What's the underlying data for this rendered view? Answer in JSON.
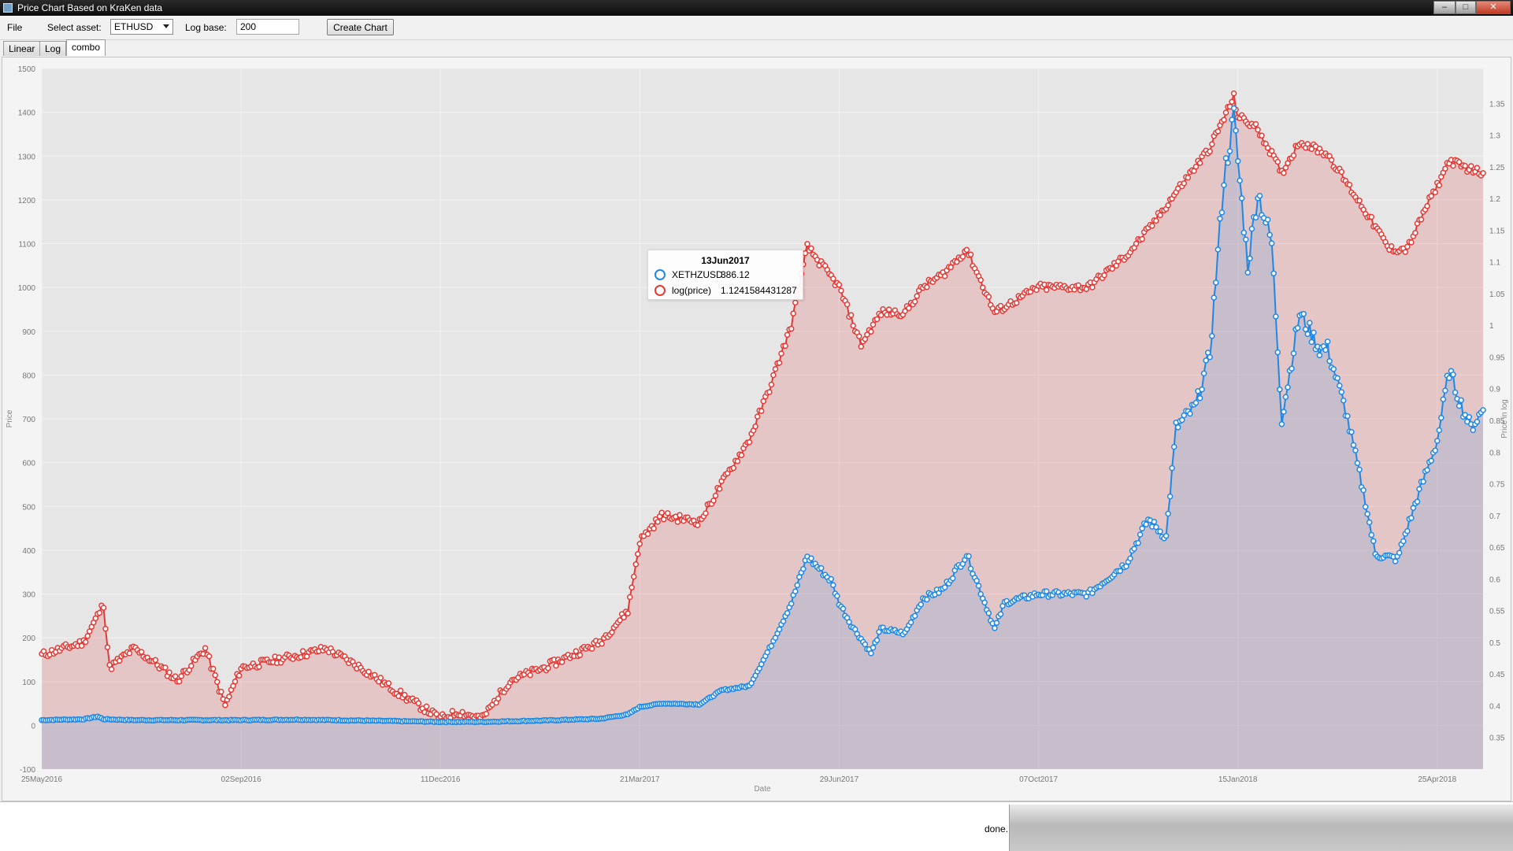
{
  "window": {
    "title": "Price Chart Based on KraKen data",
    "minimize": "–",
    "maximize": "□",
    "close": "✕"
  },
  "toolbar": {
    "file": "File",
    "select_asset_label": "Select asset:",
    "asset_value": "ETHUSD",
    "log_base_label": "Log base:",
    "log_base_value": "200",
    "create_button": "Create Chart"
  },
  "tabs": [
    {
      "label": "Linear"
    },
    {
      "label": "Log"
    },
    {
      "label": "combo",
      "active": true
    }
  ],
  "status": {
    "text": "done."
  },
  "tooltip": {
    "date": "13Jun2017",
    "rows": [
      {
        "name": "XETHZUSD",
        "value": "386.12",
        "color": "#1e88e5"
      },
      {
        "name": "log(price)",
        "value": "1.1241584431287",
        "color": "#e53935"
      }
    ]
  },
  "chart_data": {
    "type": "area",
    "xlabel": "Date",
    "ylabel": "Price",
    "y2label": "Price in log",
    "x_ticks": [
      "25May2016",
      "02Sep2016",
      "11Dec2016",
      "21Mar2017",
      "29Jun2017",
      "07Oct2017",
      "15Jan2018",
      "25Apr2018"
    ],
    "x_range": [
      "25May2016",
      "18May2018"
    ],
    "ylim": [
      -100,
      1500
    ],
    "y_ticks": [
      -100,
      0,
      100,
      200,
      300,
      400,
      500,
      600,
      700,
      800,
      900,
      1000,
      1100,
      1200,
      1300,
      1400,
      1500
    ],
    "y2lim": [
      0.3,
      1.405
    ],
    "y2_ticks": [
      0.35,
      0.4,
      0.45,
      0.5,
      0.55,
      0.6,
      0.65,
      0.7,
      0.75,
      0.8,
      0.85,
      0.9,
      0.95,
      1,
      1.05,
      1.1,
      1.15,
      1.2,
      1.25,
      1.3,
      1.35
    ],
    "grid": true,
    "colors": {
      "linear": "#1e88e5",
      "log": "#e53935",
      "plot_bg": "#e6e6e6"
    },
    "series": [
      {
        "name": "XETHZUSD",
        "axis": "left",
        "points": [
          [
            "25May2016",
            12
          ],
          [
            "15Jun2016",
            14
          ],
          [
            "22Jun2016",
            20
          ],
          [
            "25Jun2016",
            14
          ],
          [
            "10Jul2016",
            12
          ],
          [
            "24Jul2016",
            12
          ],
          [
            "02Sep2016",
            12
          ],
          [
            "01Oct2016",
            13
          ],
          [
            "01Nov2016",
            11
          ],
          [
            "11Dec2016",
            8
          ],
          [
            "20Dec2016",
            8
          ],
          [
            "01Jan2017",
            8
          ],
          [
            "01Feb2017",
            11
          ],
          [
            "01Mar2017",
            15
          ],
          [
            "15Mar2017",
            25
          ],
          [
            "21Mar2017",
            42
          ],
          [
            "01Apr2017",
            50
          ],
          [
            "20Apr2017",
            48
          ],
          [
            "01May2017",
            80
          ],
          [
            "15May2017",
            90
          ],
          [
            "25May2017",
            175
          ],
          [
            "05Jun2017",
            280
          ],
          [
            "13Jun2017",
            386
          ],
          [
            "25Jun2017",
            330
          ],
          [
            "29Jun2017",
            280
          ],
          [
            "05Jul2017",
            230
          ],
          [
            "15Jul2017",
            165
          ],
          [
            "20Jul2017",
            220
          ],
          [
            "01Aug2017",
            210
          ],
          [
            "10Aug2017",
            290
          ],
          [
            "20Aug2017",
            310
          ],
          [
            "01Sep2017",
            390
          ],
          [
            "15Sep2017",
            220
          ],
          [
            "20Sep2017",
            280
          ],
          [
            "07Oct2017",
            300
          ],
          [
            "20Oct2017",
            300
          ],
          [
            "01Nov2017",
            300
          ],
          [
            "20Nov2017",
            370
          ],
          [
            "01Dec2017",
            470
          ],
          [
            "10Dec2017",
            430
          ],
          [
            "15Dec2017",
            680
          ],
          [
            "25Dec2017",
            730
          ],
          [
            "01Jan2018",
            850
          ],
          [
            "08Jan2018",
            1250
          ],
          [
            "13Jan2018",
            1390
          ],
          [
            "15Jan2018",
            1290
          ],
          [
            "20Jan2018",
            1050
          ],
          [
            "25Jan2018",
            1220
          ],
          [
            "01Feb2018",
            1100
          ],
          [
            "06Feb2018",
            700
          ],
          [
            "15Feb2018",
            940
          ],
          [
            "25Feb2018",
            860
          ],
          [
            "01Mar2018",
            860
          ],
          [
            "10Mar2018",
            720
          ],
          [
            "20Mar2018",
            510
          ],
          [
            "25Mar2018",
            390
          ],
          [
            "05Apr2018",
            380
          ],
          [
            "15Apr2018",
            520
          ],
          [
            "25Apr2018",
            650
          ],
          [
            "01May2018",
            810
          ],
          [
            "08May2018",
            720
          ],
          [
            "12May2018",
            680
          ],
          [
            "18May2018",
            720
          ]
        ]
      },
      {
        "name": "log(price)",
        "axis": "right",
        "points": [
          [
            "25May2016",
            0.48
          ],
          [
            "15Jun2016",
            0.5
          ],
          [
            "25Jun2016",
            0.56
          ],
          [
            "28Jun2016",
            0.46
          ],
          [
            "10Jul2016",
            0.49
          ],
          [
            "20Jul2016",
            0.47
          ],
          [
            "01Aug2016",
            0.44
          ],
          [
            "15Aug2016",
            0.49
          ],
          [
            "25Aug2016",
            0.4
          ],
          [
            "02Sep2016",
            0.46
          ],
          [
            "01Oct2016",
            0.48
          ],
          [
            "15Oct2016",
            0.49
          ],
          [
            "01Nov2016",
            0.46
          ],
          [
            "20Nov2016",
            0.42
          ],
          [
            "11Dec2016",
            0.38
          ],
          [
            "20Dec2016",
            0.39
          ],
          [
            "01Jan2017",
            0.38
          ],
          [
            "15Jan2017",
            0.44
          ],
          [
            "01Feb2017",
            0.46
          ],
          [
            "01Mar2017",
            0.5
          ],
          [
            "15Mar2017",
            0.55
          ],
          [
            "21Mar2017",
            0.66
          ],
          [
            "01Apr2017",
            0.7
          ],
          [
            "20Apr2017",
            0.69
          ],
          [
            "01May2017",
            0.75
          ],
          [
            "15May2017",
            0.82
          ],
          [
            "25May2017",
            0.9
          ],
          [
            "05Jun2017",
            1.0
          ],
          [
            "13Jun2017",
            1.124
          ],
          [
            "29Jun2017",
            1.06
          ],
          [
            "10Jul2017",
            0.97
          ],
          [
            "20Jul2017",
            1.02
          ],
          [
            "01Aug2017",
            1.02
          ],
          [
            "10Aug2017",
            1.06
          ],
          [
            "20Aug2017",
            1.08
          ],
          [
            "01Sep2017",
            1.12
          ],
          [
            "15Sep2017",
            1.02
          ],
          [
            "07Oct2017",
            1.06
          ],
          [
            "01Nov2017",
            1.06
          ],
          [
            "20Nov2017",
            1.11
          ],
          [
            "01Dec2017",
            1.15
          ],
          [
            "15Dec2017",
            1.21
          ],
          [
            "01Jan2018",
            1.28
          ],
          [
            "13Jan2018",
            1.36
          ],
          [
            "15Jan2018",
            1.33
          ],
          [
            "25Jan2018",
            1.31
          ],
          [
            "01Feb2018",
            1.27
          ],
          [
            "06Feb2018",
            1.24
          ],
          [
            "15Feb2018",
            1.29
          ],
          [
            "01Mar2018",
            1.27
          ],
          [
            "20Mar2018",
            1.18
          ],
          [
            "01Apr2018",
            1.12
          ],
          [
            "10Apr2018",
            1.12
          ],
          [
            "20Apr2018",
            1.19
          ],
          [
            "25Apr2018",
            1.22
          ],
          [
            "01May2018",
            1.26
          ],
          [
            "08May2018",
            1.25
          ],
          [
            "18May2018",
            1.24
          ]
        ]
      }
    ]
  }
}
